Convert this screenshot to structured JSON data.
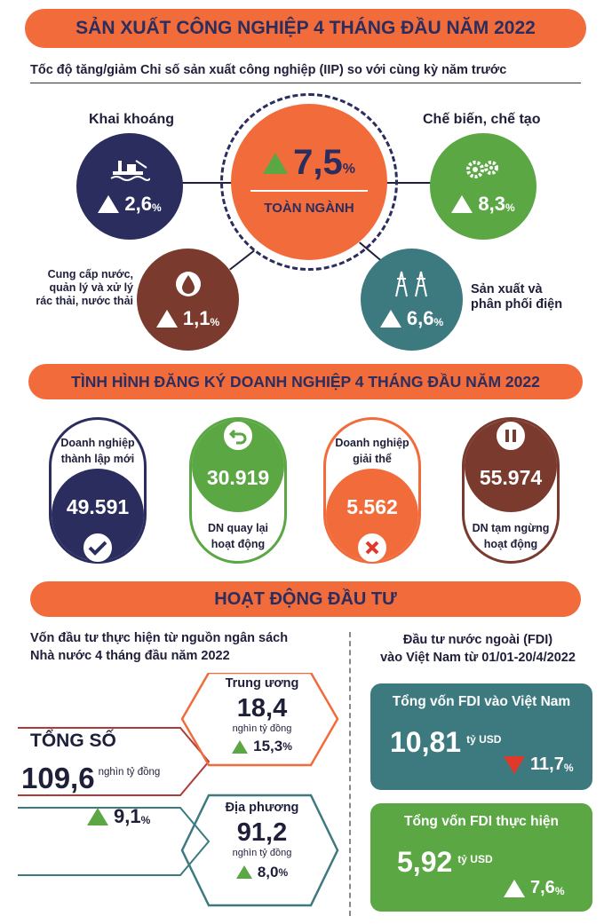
{
  "section1": {
    "title": "SẢN XUẤT CÔNG NGHIỆP 4 THÁNG ĐẦU NĂM 2022",
    "subtitle": "Tốc độ tăng/giảm Chỉ số sản xuất công nghiệp (IIP) so với cùng kỳ năm trước",
    "center": {
      "value": "7,5",
      "unit": "%",
      "label": "TOÀN NGÀNH"
    },
    "mining": {
      "label": "Khai khoáng",
      "value": "2,6",
      "unit": "%"
    },
    "manufacturing": {
      "label": "Chế biến, chế tạo",
      "value": "8,3",
      "unit": "%"
    },
    "water": {
      "label": "Cung cấp nước, quản lý và xử lý rác thải, nước thải",
      "label_l1": "Cung cấp nước,",
      "label_l2": "quản lý và xử lý",
      "label_l3": "rác thải, nước thải",
      "value": "1,1",
      "unit": "%"
    },
    "electricity": {
      "label_l1": "Sản xuất và",
      "label_l2": "phân phối điện",
      "value": "6,6",
      "unit": "%"
    }
  },
  "section2": {
    "title": "TÌNH HÌNH ĐĂNG KÝ DOANH NGHIỆP 4 THÁNG ĐẦU NĂM 2022",
    "new": {
      "label_l1": "Doanh nghiệp",
      "label_l2": "thành lập mới",
      "value": "49.591"
    },
    "returned": {
      "value": "30.919",
      "label_l1": "DN quay lại",
      "label_l2": "hoạt động"
    },
    "dissolved": {
      "label_l1": "Doanh nghiệp",
      "label_l2": "giải thể",
      "value": "5.562"
    },
    "suspended": {
      "value": "55.974",
      "label_l1": "DN tạm ngừng",
      "label_l2": "hoạt động"
    }
  },
  "section3": {
    "title": "HOẠT ĐỘNG ĐẦU TƯ",
    "left_heading_l1": "Vốn đầu tư thực hiện từ nguồn ngân sách",
    "left_heading_l2": "Nhà nước 4 tháng đầu năm 2022",
    "total": {
      "label": "TỔNG SỐ",
      "value": "109,6",
      "unit": "nghìn tỷ đồng",
      "growth": "9,1",
      "growth_unit": "%"
    },
    "central": {
      "label": "Trung ương",
      "value": "18,4",
      "unit": "nghìn tỷ đồng",
      "growth": "15,3",
      "growth_unit": "%"
    },
    "local": {
      "label": "Địa phương",
      "value": "91,2",
      "unit_l1": "nghìn tỷ",
      "unit_l2": "đồng",
      "growth": "8,0",
      "growth_unit": "%"
    },
    "right_heading_l1": "Đầu tư nước ngoài (FDI)",
    "right_heading_l2": "vào Việt Nam từ 01/01-20/4/2022",
    "fdi_total": {
      "label": "Tổng vốn FDI vào Việt Nam",
      "value": "10,81",
      "unit": "tỷ USD",
      "change": "11,7",
      "change_unit": "%"
    },
    "fdi_realized": {
      "label": "Tổng vốn FDI thực hiện",
      "value": "5,92",
      "unit": "tỷ USD",
      "change": "7,6",
      "change_unit": "%"
    }
  },
  "colors": {
    "banner": "#f26b3a",
    "navy": "#2b2d5e",
    "green": "#5aa744",
    "brown": "#7a3a2e",
    "teal": "#3d7a80",
    "orange": "#f26b3a",
    "red": "#e0382b"
  }
}
